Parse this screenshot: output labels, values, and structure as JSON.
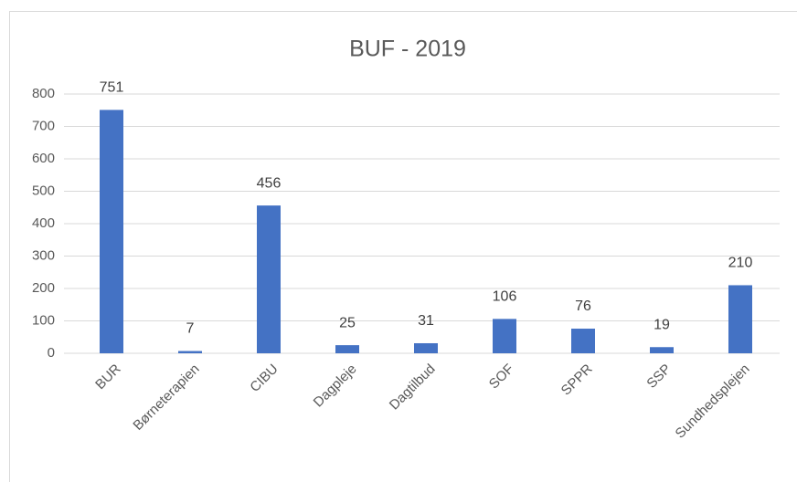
{
  "chart_data": {
    "type": "bar",
    "title": "BUF - 2019",
    "categories": [
      "BUR",
      "Børneterapien",
      "CIBU",
      "Dagpleje",
      "Dagtilbud",
      "SOF",
      "SPPR",
      "SSP",
      "Sundhedsplejen"
    ],
    "values": [
      751,
      7,
      456,
      25,
      31,
      106,
      76,
      19,
      210
    ],
    "color": "#4472c4",
    "ylim": [
      0,
      800
    ],
    "yticks": [
      0,
      100,
      200,
      300,
      400,
      500,
      600,
      700,
      800
    ],
    "grid": true
  }
}
